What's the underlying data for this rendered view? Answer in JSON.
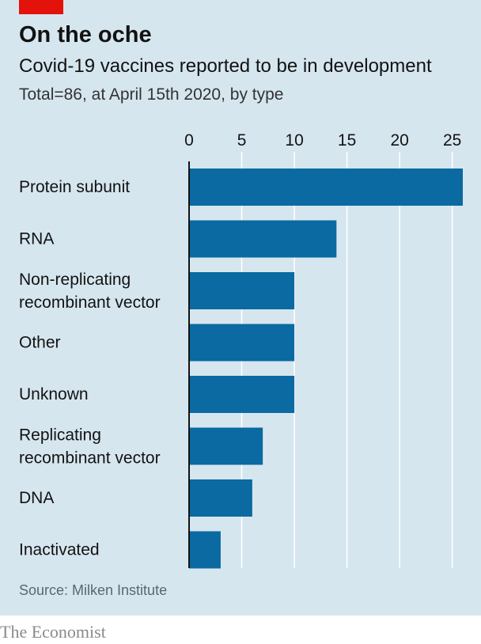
{
  "header": {
    "title": "On the oche",
    "subtitle": "Covid-19 vaccines reported to be in development",
    "subtitle2": "Total=86, at April 15th 2020, by type"
  },
  "footer": {
    "source": "Source: Milken Institute",
    "brand": "The Economist"
  },
  "colors": {
    "bar": "#0a6aa1",
    "background": "#d6e6ef",
    "accent": "#e3120b"
  },
  "chart_data": {
    "type": "bar",
    "orientation": "horizontal",
    "title": "On the oche",
    "subtitle": "Covid-19 vaccines reported to be in development",
    "categories": [
      [
        "Protein subunit"
      ],
      [
        "RNA"
      ],
      [
        "Non-replicating",
        "recombinant vector"
      ],
      [
        "Other"
      ],
      [
        "Unknown"
      ],
      [
        "Replicating",
        "recombinant vector"
      ],
      [
        "DNA"
      ],
      [
        "Inactivated"
      ]
    ],
    "values": [
      26,
      14,
      10,
      10,
      10,
      7,
      6,
      3
    ],
    "xlim": [
      0,
      26
    ],
    "xticks": [
      0,
      5,
      10,
      15,
      20,
      25
    ],
    "tick_position": "top",
    "grid": true
  }
}
